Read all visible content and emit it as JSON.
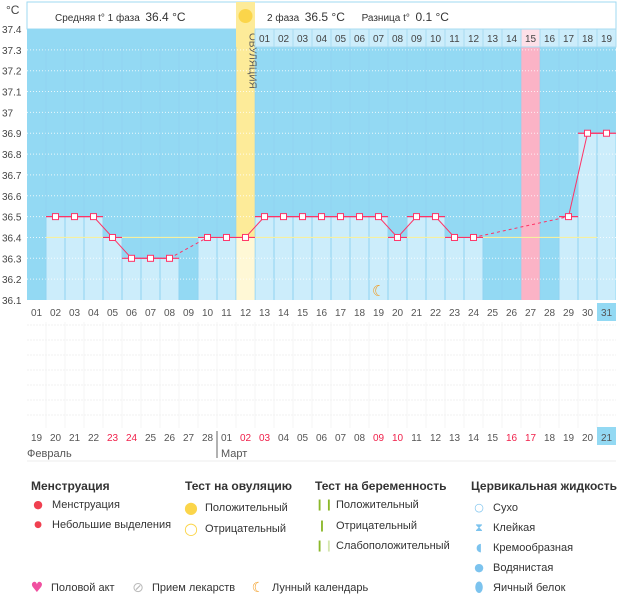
{
  "chart_data": {
    "type": "line",
    "ylabel": "°C",
    "ylim": [
      36.1,
      37.4
    ],
    "yticks": [
      "37.4",
      "37.3",
      "37.2",
      "37.1",
      "37",
      "36.9",
      "36.8",
      "36.7",
      "36.6",
      "36.5",
      "36.4",
      "36.3",
      "36.2",
      "36.1"
    ],
    "cycle_days": [
      "01",
      "02",
      "03",
      "04",
      "05",
      "06",
      "07",
      "08",
      "09",
      "10",
      "11",
      "12",
      "13",
      "14",
      "15",
      "16",
      "17",
      "18",
      "19",
      "20",
      "21",
      "22",
      "23",
      "24",
      "25",
      "26",
      "27",
      "28",
      "29",
      "30",
      "31"
    ],
    "temperatures": [
      null,
      36.5,
      36.5,
      36.5,
      36.4,
      36.3,
      36.3,
      36.3,
      null,
      36.4,
      36.4,
      36.4,
      36.5,
      36.5,
      36.5,
      36.5,
      36.5,
      36.5,
      36.5,
      36.4,
      36.5,
      36.5,
      36.4,
      36.4,
      null,
      null,
      null,
      null,
      36.5,
      36.9,
      36.9
    ],
    "coverline": 36.4,
    "ovulation_day": 12,
    "ovulation_label": "ОВУЛЯЦИЯ",
    "highlight_pink_day": 27,
    "current_day": 31,
    "moon_day": 19,
    "next_cycle_days": [
      "01",
      "02",
      "03",
      "04",
      "05",
      "06",
      "07",
      "08",
      "09",
      "10",
      "11",
      "12",
      "13",
      "14",
      "15",
      "16",
      "17",
      "18",
      "19"
    ],
    "dates": [
      "19",
      "20",
      "21",
      "22",
      "23",
      "24",
      "25",
      "26",
      "27",
      "28",
      "01",
      "02",
      "03",
      "04",
      "05",
      "06",
      "07",
      "08",
      "09",
      "10",
      "11",
      "12",
      "13",
      "14",
      "15",
      "16",
      "17",
      "18",
      "19",
      "20",
      "21"
    ],
    "red_dates": [
      4,
      5,
      11,
      12,
      18,
      19,
      25,
      26
    ],
    "months": [
      "Февраль",
      "Март"
    ],
    "colors": {
      "bg": "#93d9f3",
      "bar": "#ccedfb",
      "line": "#ff3366",
      "ovulation": "#fdeb99",
      "pink": "#fbb3c6",
      "coverline": "#f6f0a0"
    }
  },
  "header": {
    "phase1_label": "Средняя t° 1 фаза",
    "phase1_value": "36.4 °C",
    "phase2_label": "2 фаза",
    "phase2_value": "36.5 °C",
    "diff_label": "Разница t°",
    "diff_value": "0.1 °C"
  },
  "legend": {
    "menstruation": {
      "title": "Менструация",
      "items": [
        "Менструация",
        "Небольшие выделения"
      ]
    },
    "ovulation_test": {
      "title": "Тест на овуляцию",
      "items": [
        "Положительный",
        "Отрицательный"
      ]
    },
    "pregnancy_test": {
      "title": "Тест на беременность",
      "items": [
        "Положительный",
        "Отрицательный",
        "Слабоположительный"
      ]
    },
    "cervical": {
      "title": "Цервикальная жидкость",
      "items": [
        "Сухо",
        "Клейкая",
        "Кремообразная",
        "Водянистая",
        "Яичный белок"
      ]
    },
    "other": [
      "Половой акт",
      "Прием лекарств",
      "Лунный календарь"
    ]
  }
}
